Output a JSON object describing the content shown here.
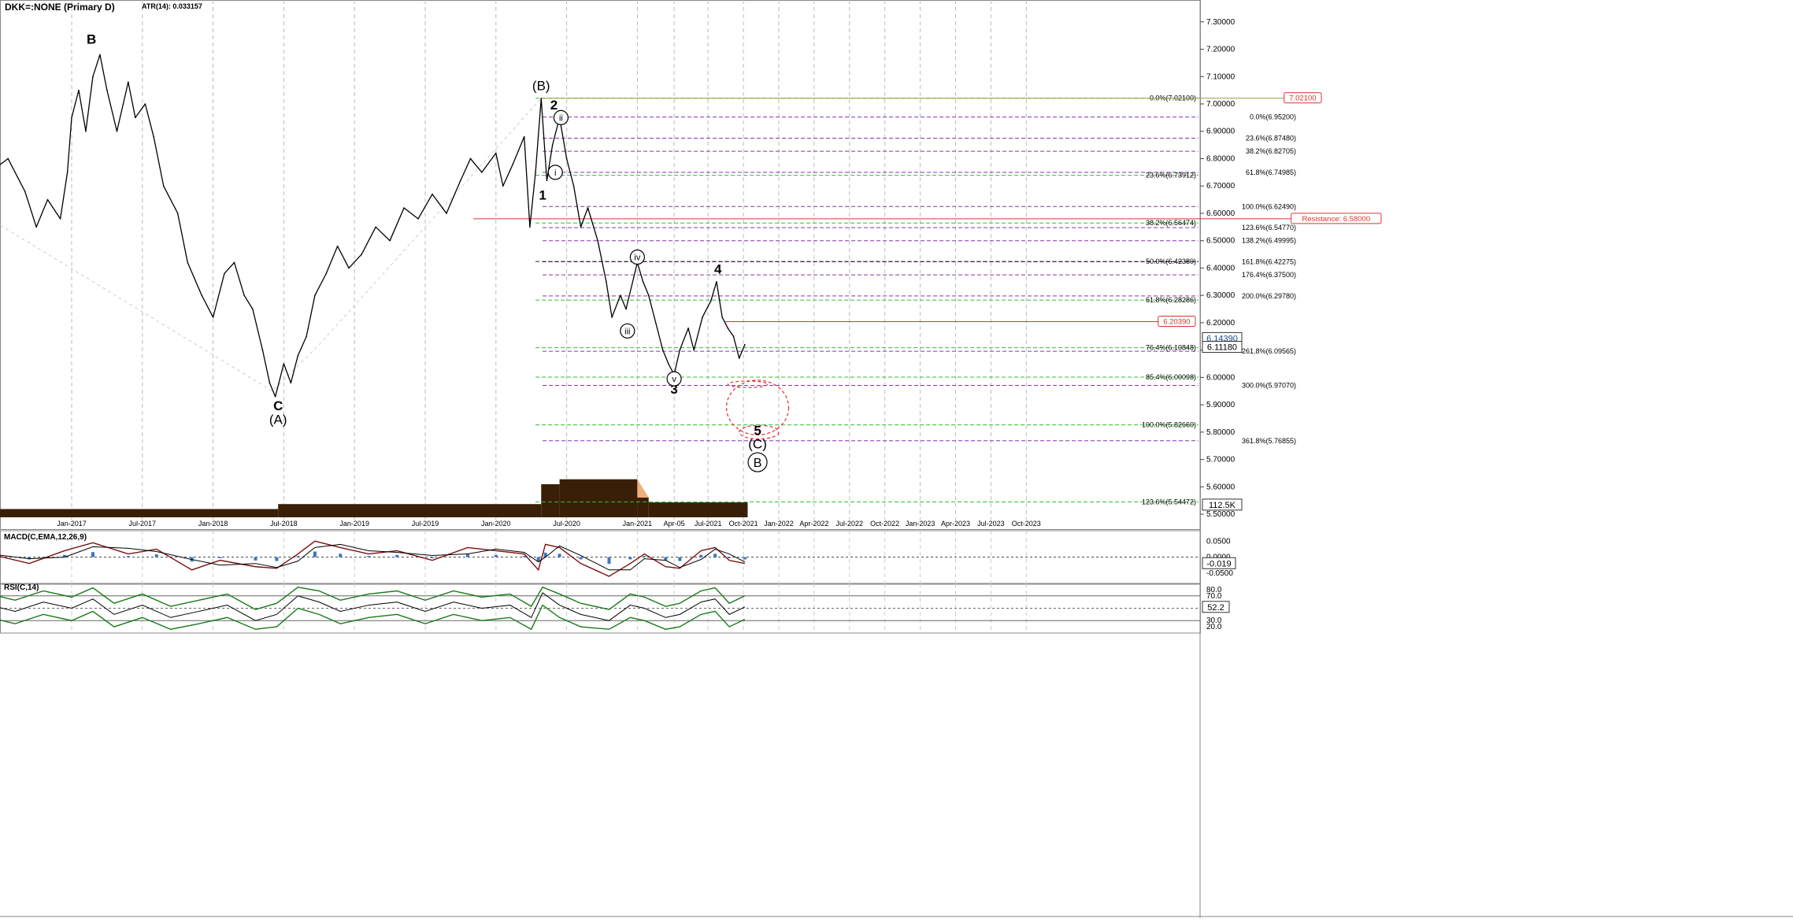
{
  "header": {
    "symbol": "DKK=:NONE (Primary D)",
    "atr": "ATR(14): 0.033157"
  },
  "colors": {
    "price": "#000000",
    "green_fib": "#33bb33",
    "purple_fib": "#8833aa",
    "red": "#e03030",
    "olive": "#9a9a40",
    "volume": "#3a1f08",
    "macd_fast": "#7a1010",
    "macd_hist": "#3a78c0",
    "rsi_band": "#1a7a1a"
  },
  "chart_data": [
    {
      "type": "line",
      "panel": "price",
      "ylim": [
        5.48,
        7.38
      ],
      "y_ticks": [
        "7.30000",
        "7.20000",
        "7.10000",
        "7.00000",
        "6.90000",
        "6.80000",
        "6.70000",
        "6.60000",
        "6.50000",
        "6.40000",
        "6.30000",
        "6.20000",
        "6.10000",
        "6.00000",
        "5.90000",
        "5.80000",
        "5.70000",
        "5.60000",
        "5.50000"
      ],
      "x_ticks": [
        "Jan-2017",
        "Jul-2017",
        "Jan-2018",
        "Jul-2018",
        "Jan-2019",
        "Jul-2019",
        "Jan-2020",
        "Jul-2020",
        "Jan-2021",
        "Apr-05",
        "Jul-2021",
        "Oct-2021",
        "Jan-2022",
        "Apr-2022",
        "Jul-2022",
        "Oct-2022",
        "Jan-2023",
        "Apr-2023",
        "Jul-2023",
        "Oct-2023"
      ],
      "price_path": [
        [
          2016.42,
          6.75
        ],
        [
          2016.55,
          6.8
        ],
        [
          2016.67,
          6.68
        ],
        [
          2016.75,
          6.55
        ],
        [
          2016.83,
          6.65
        ],
        [
          2016.92,
          6.58
        ],
        [
          2016.97,
          6.75
        ],
        [
          2017.0,
          6.95
        ],
        [
          2017.05,
          7.05
        ],
        [
          2017.1,
          6.9
        ],
        [
          2017.15,
          7.1
        ],
        [
          2017.2,
          7.18
        ],
        [
          2017.25,
          7.05
        ],
        [
          2017.32,
          6.9
        ],
        [
          2017.4,
          7.08
        ],
        [
          2017.45,
          6.95
        ],
        [
          2017.52,
          7.0
        ],
        [
          2017.58,
          6.88
        ],
        [
          2017.65,
          6.7
        ],
        [
          2017.75,
          6.6
        ],
        [
          2017.82,
          6.42
        ],
        [
          2017.92,
          6.3
        ],
        [
          2018.0,
          6.22
        ],
        [
          2018.08,
          6.38
        ],
        [
          2018.15,
          6.42
        ],
        [
          2018.22,
          6.3
        ],
        [
          2018.28,
          6.25
        ],
        [
          2018.35,
          6.1
        ],
        [
          2018.4,
          5.98
        ],
        [
          2018.44,
          5.93
        ],
        [
          2018.5,
          6.05
        ],
        [
          2018.55,
          5.98
        ],
        [
          2018.6,
          6.08
        ],
        [
          2018.66,
          6.15
        ],
        [
          2018.72,
          6.3
        ],
        [
          2018.8,
          6.38
        ],
        [
          2018.88,
          6.48
        ],
        [
          2018.96,
          6.4
        ],
        [
          2019.05,
          6.45
        ],
        [
          2019.15,
          6.55
        ],
        [
          2019.25,
          6.5
        ],
        [
          2019.35,
          6.62
        ],
        [
          2019.45,
          6.58
        ],
        [
          2019.55,
          6.67
        ],
        [
          2019.65,
          6.6
        ],
        [
          2019.75,
          6.72
        ],
        [
          2019.82,
          6.8
        ],
        [
          2019.9,
          6.75
        ],
        [
          2020.0,
          6.82
        ],
        [
          2020.05,
          6.7
        ],
        [
          2020.12,
          6.78
        ],
        [
          2020.2,
          6.88
        ],
        [
          2020.24,
          6.55
        ],
        [
          2020.28,
          6.75
        ],
        [
          2020.32,
          7.02
        ],
        [
          2020.36,
          6.72
        ],
        [
          2020.4,
          6.85
        ],
        [
          2020.45,
          6.95
        ],
        [
          2020.5,
          6.8
        ],
        [
          2020.55,
          6.7
        ],
        [
          2020.6,
          6.55
        ],
        [
          2020.65,
          6.62
        ],
        [
          2020.72,
          6.5
        ],
        [
          2020.78,
          6.35
        ],
        [
          2020.82,
          6.22
        ],
        [
          2020.88,
          6.3
        ],
        [
          2020.92,
          6.25
        ],
        [
          2021.0,
          6.42
        ],
        [
          2021.04,
          6.35
        ],
        [
          2021.08,
          6.3
        ],
        [
          2021.13,
          6.2
        ],
        [
          2021.18,
          6.1
        ],
        [
          2021.22,
          6.05
        ],
        [
          2021.26,
          6.01
        ],
        [
          2021.3,
          6.1
        ],
        [
          2021.36,
          6.18
        ],
        [
          2021.4,
          6.1
        ],
        [
          2021.46,
          6.22
        ],
        [
          2021.52,
          6.28
        ],
        [
          2021.56,
          6.35
        ],
        [
          2021.6,
          6.22
        ],
        [
          2021.64,
          6.18
        ],
        [
          2021.68,
          6.15
        ],
        [
          2021.72,
          6.07
        ],
        [
          2021.76,
          6.12
        ]
      ],
      "diagonal_path": [
        [
          2016.42,
          6.58
        ],
        [
          2018.42,
          5.95
        ],
        [
          2018.75,
          6.12
        ],
        [
          2020.32,
          7.02
        ]
      ],
      "wave_labels": [
        {
          "text": "B",
          "x": 2017.14,
          "y": 7.22,
          "bold": true
        },
        {
          "text": "C",
          "x": 2018.46,
          "y": 5.88,
          "bold": true
        },
        {
          "text": "(A)",
          "x": 2018.46,
          "y": 5.83,
          "bold": false
        },
        {
          "text": "(B)",
          "x": 2020.32,
          "y": 7.05,
          "bold": false
        },
        {
          "text": "1",
          "x": 2020.33,
          "y": 6.65,
          "bold": true
        },
        {
          "text": "2",
          "x": 2020.41,
          "y": 6.98,
          "bold": true
        },
        {
          "text": "3",
          "x": 2021.26,
          "y": 5.94,
          "bold": true
        },
        {
          "text": "4",
          "x": 2021.57,
          "y": 6.38,
          "bold": true
        },
        {
          "text": "5",
          "x": 2021.85,
          "y": 5.79,
          "bold": true
        },
        {
          "text": "(C)",
          "x": 2021.85,
          "y": 5.74,
          "bold": false
        }
      ],
      "circle_labels": [
        {
          "text": "i",
          "x": 2020.42,
          "y": 6.75
        },
        {
          "text": "ii",
          "x": 2020.46,
          "y": 6.95
        },
        {
          "text": "iii",
          "x": 2020.93,
          "y": 6.17
        },
        {
          "text": "iv",
          "x": 2021.0,
          "y": 6.44
        },
        {
          "text": "v",
          "x": 2021.26,
          "y": 5.995
        },
        {
          "text": "B",
          "x": 2021.85,
          "y": 5.69
        }
      ],
      "fib_center": [
        {
          "label": "0.0%(6.95200)",
          "y": 6.952,
          "color": "purple"
        },
        {
          "label": "23.6%(6.87480)",
          "y": 6.8748,
          "color": "purple"
        },
        {
          "label": "38.2%(6.82705)",
          "y": 6.82705,
          "color": "purple"
        },
        {
          "label": "61.8%(6.74985)",
          "y": 6.74985,
          "color": "purple"
        },
        {
          "label": "100.0%(6.62490)",
          "y": 6.6249,
          "color": "purple"
        },
        {
          "label": "123.6%(6.54770)",
          "y": 6.5477,
          "color": "purple"
        },
        {
          "label": "138.2%(6.49995)",
          "y": 6.49995,
          "color": "purple"
        },
        {
          "label": "161.8%(6.42275)",
          "y": 6.42275,
          "color": "purple"
        },
        {
          "label": "176.4%(6.37500)",
          "y": 6.375,
          "color": "purple"
        },
        {
          "label": "200.0%(6.29780)",
          "y": 6.2978,
          "color": "purple"
        },
        {
          "label": "261.8%(6.09565)",
          "y": 6.09565,
          "color": "purple"
        },
        {
          "label": "300.0%(5.97070)",
          "y": 5.9707,
          "color": "purple"
        },
        {
          "label": "361.8%(5.76855)",
          "y": 5.76855,
          "color": "purple"
        }
      ],
      "fib_right": [
        {
          "label": "0.0%(7.02100)",
          "y": 7.021,
          "color": "green"
        },
        {
          "label": "23.6%(6.73912)",
          "y": 6.73912,
          "color": "green"
        },
        {
          "label": "38.2%(6.56474)",
          "y": 6.56474,
          "color": "green"
        },
        {
          "label": "50.0%(6.42380)",
          "y": 6.4238,
          "color": "black"
        },
        {
          "label": "61.8%(6.28286)",
          "y": 6.28286,
          "color": "green"
        },
        {
          "label": "76.4%(6.10848)",
          "y": 6.10848,
          "color": "green"
        },
        {
          "label": "85.4%(6.00098)",
          "y": 6.00098,
          "color": "green"
        },
        {
          "label": "100.0%(5.82660)",
          "y": 5.8266,
          "color": "green"
        },
        {
          "label": "123.6%(5.54472)",
          "y": 5.54472,
          "color": "green"
        }
      ],
      "price_tags": [
        {
          "label": "7.02100",
          "y": 7.021
        },
        {
          "label": "Resistance: 6.58000",
          "y": 6.58
        },
        {
          "label": "6.20390",
          "y": 6.2039
        }
      ],
      "axis_tags": [
        {
          "label": "6.14390",
          "y": 6.1439
        },
        {
          "label": "6.11180",
          "y": 6.1118
        },
        {
          "label": "112.5K",
          "y": 5.535
        }
      ],
      "target_ellipses": [
        {
          "cx": 2021.78,
          "cy": 5.975,
          "rx": 0.14,
          "ry": 0.012
        },
        {
          "cx": 2021.85,
          "cy": 5.89,
          "rx": 0.22,
          "ry": 0.1
        },
        {
          "cx": 2021.86,
          "cy": 5.8,
          "rx": 0.14,
          "ry": 0.025
        }
      ]
    },
    {
      "type": "bar",
      "panel": "volume",
      "segments": [
        {
          "x0": 2016.42,
          "x1": 2018.46,
          "value": 0.25
        },
        {
          "x0": 2018.46,
          "x1": 2020.32,
          "value": 0.4
        },
        {
          "x0": 2020.32,
          "x1": 2020.45,
          "value": 1.0
        },
        {
          "x0": 2020.45,
          "x1": 2021.0,
          "value": 1.15
        },
        {
          "x0": 2021.0,
          "x1": 2021.08,
          "value": 0.6
        },
        {
          "x0": 2021.08,
          "x1": 2021.78,
          "value": 0.45
        }
      ]
    },
    {
      "type": "line",
      "panel": "macd",
      "title": "MACD(C,EMA,12,26,9)",
      "ylim": [
        -0.075,
        0.068
      ],
      "y_ticks": [
        "0.0500",
        "0.0000",
        "-0.0500"
      ],
      "last_value": "-0.019",
      "macd": [
        [
          2016.42,
          0.01
        ],
        [
          2016.7,
          -0.02
        ],
        [
          2016.95,
          0.02
        ],
        [
          2017.15,
          0.045
        ],
        [
          2017.4,
          0.01
        ],
        [
          2017.6,
          0.025
        ],
        [
          2017.85,
          -0.04
        ],
        [
          2018.05,
          -0.01
        ],
        [
          2018.3,
          -0.03
        ],
        [
          2018.45,
          -0.035
        ],
        [
          2018.6,
          0.01
        ],
        [
          2018.72,
          0.05
        ],
        [
          2018.9,
          0.03
        ],
        [
          2019.1,
          0.01
        ],
        [
          2019.3,
          0.02
        ],
        [
          2019.55,
          -0.01
        ],
        [
          2019.8,
          0.03
        ],
        [
          2020.0,
          0.02
        ],
        [
          2020.2,
          0.01
        ],
        [
          2020.3,
          -0.04
        ],
        [
          2020.35,
          0.04
        ],
        [
          2020.45,
          0.03
        ],
        [
          2020.6,
          -0.02
        ],
        [
          2020.8,
          -0.06
        ],
        [
          2020.95,
          -0.02
        ],
        [
          2021.05,
          0.01
        ],
        [
          2021.2,
          -0.03
        ],
        [
          2021.3,
          -0.035
        ],
        [
          2021.45,
          0.02
        ],
        [
          2021.55,
          0.03
        ],
        [
          2021.65,
          -0.01
        ],
        [
          2021.76,
          -0.02
        ]
      ]
    },
    {
      "type": "line",
      "panel": "rsi",
      "title": "RSI(C,14)",
      "ylim": [
        15,
        85
      ],
      "y_ticks": [
        "80.0",
        "70.0",
        "30.0",
        "20.0"
      ],
      "last_value": "52.2",
      "rsi": [
        [
          2016.42,
          55
        ],
        [
          2016.6,
          45
        ],
        [
          2016.8,
          60
        ],
        [
          2017.0,
          50
        ],
        [
          2017.15,
          65
        ],
        [
          2017.3,
          40
        ],
        [
          2017.5,
          55
        ],
        [
          2017.7,
          35
        ],
        [
          2017.9,
          45
        ],
        [
          2018.1,
          55
        ],
        [
          2018.3,
          30
        ],
        [
          2018.45,
          40
        ],
        [
          2018.6,
          70
        ],
        [
          2018.75,
          60
        ],
        [
          2018.9,
          45
        ],
        [
          2019.1,
          55
        ],
        [
          2019.3,
          60
        ],
        [
          2019.5,
          45
        ],
        [
          2019.7,
          60
        ],
        [
          2019.9,
          50
        ],
        [
          2020.1,
          55
        ],
        [
          2020.25,
          35
        ],
        [
          2020.33,
          75
        ],
        [
          2020.45,
          55
        ],
        [
          2020.6,
          40
        ],
        [
          2020.8,
          30
        ],
        [
          2020.95,
          55
        ],
        [
          2021.05,
          50
        ],
        [
          2021.2,
          35
        ],
        [
          2021.3,
          40
        ],
        [
          2021.45,
          60
        ],
        [
          2021.55,
          65
        ],
        [
          2021.65,
          40
        ],
        [
          2021.76,
          52
        ]
      ]
    }
  ]
}
